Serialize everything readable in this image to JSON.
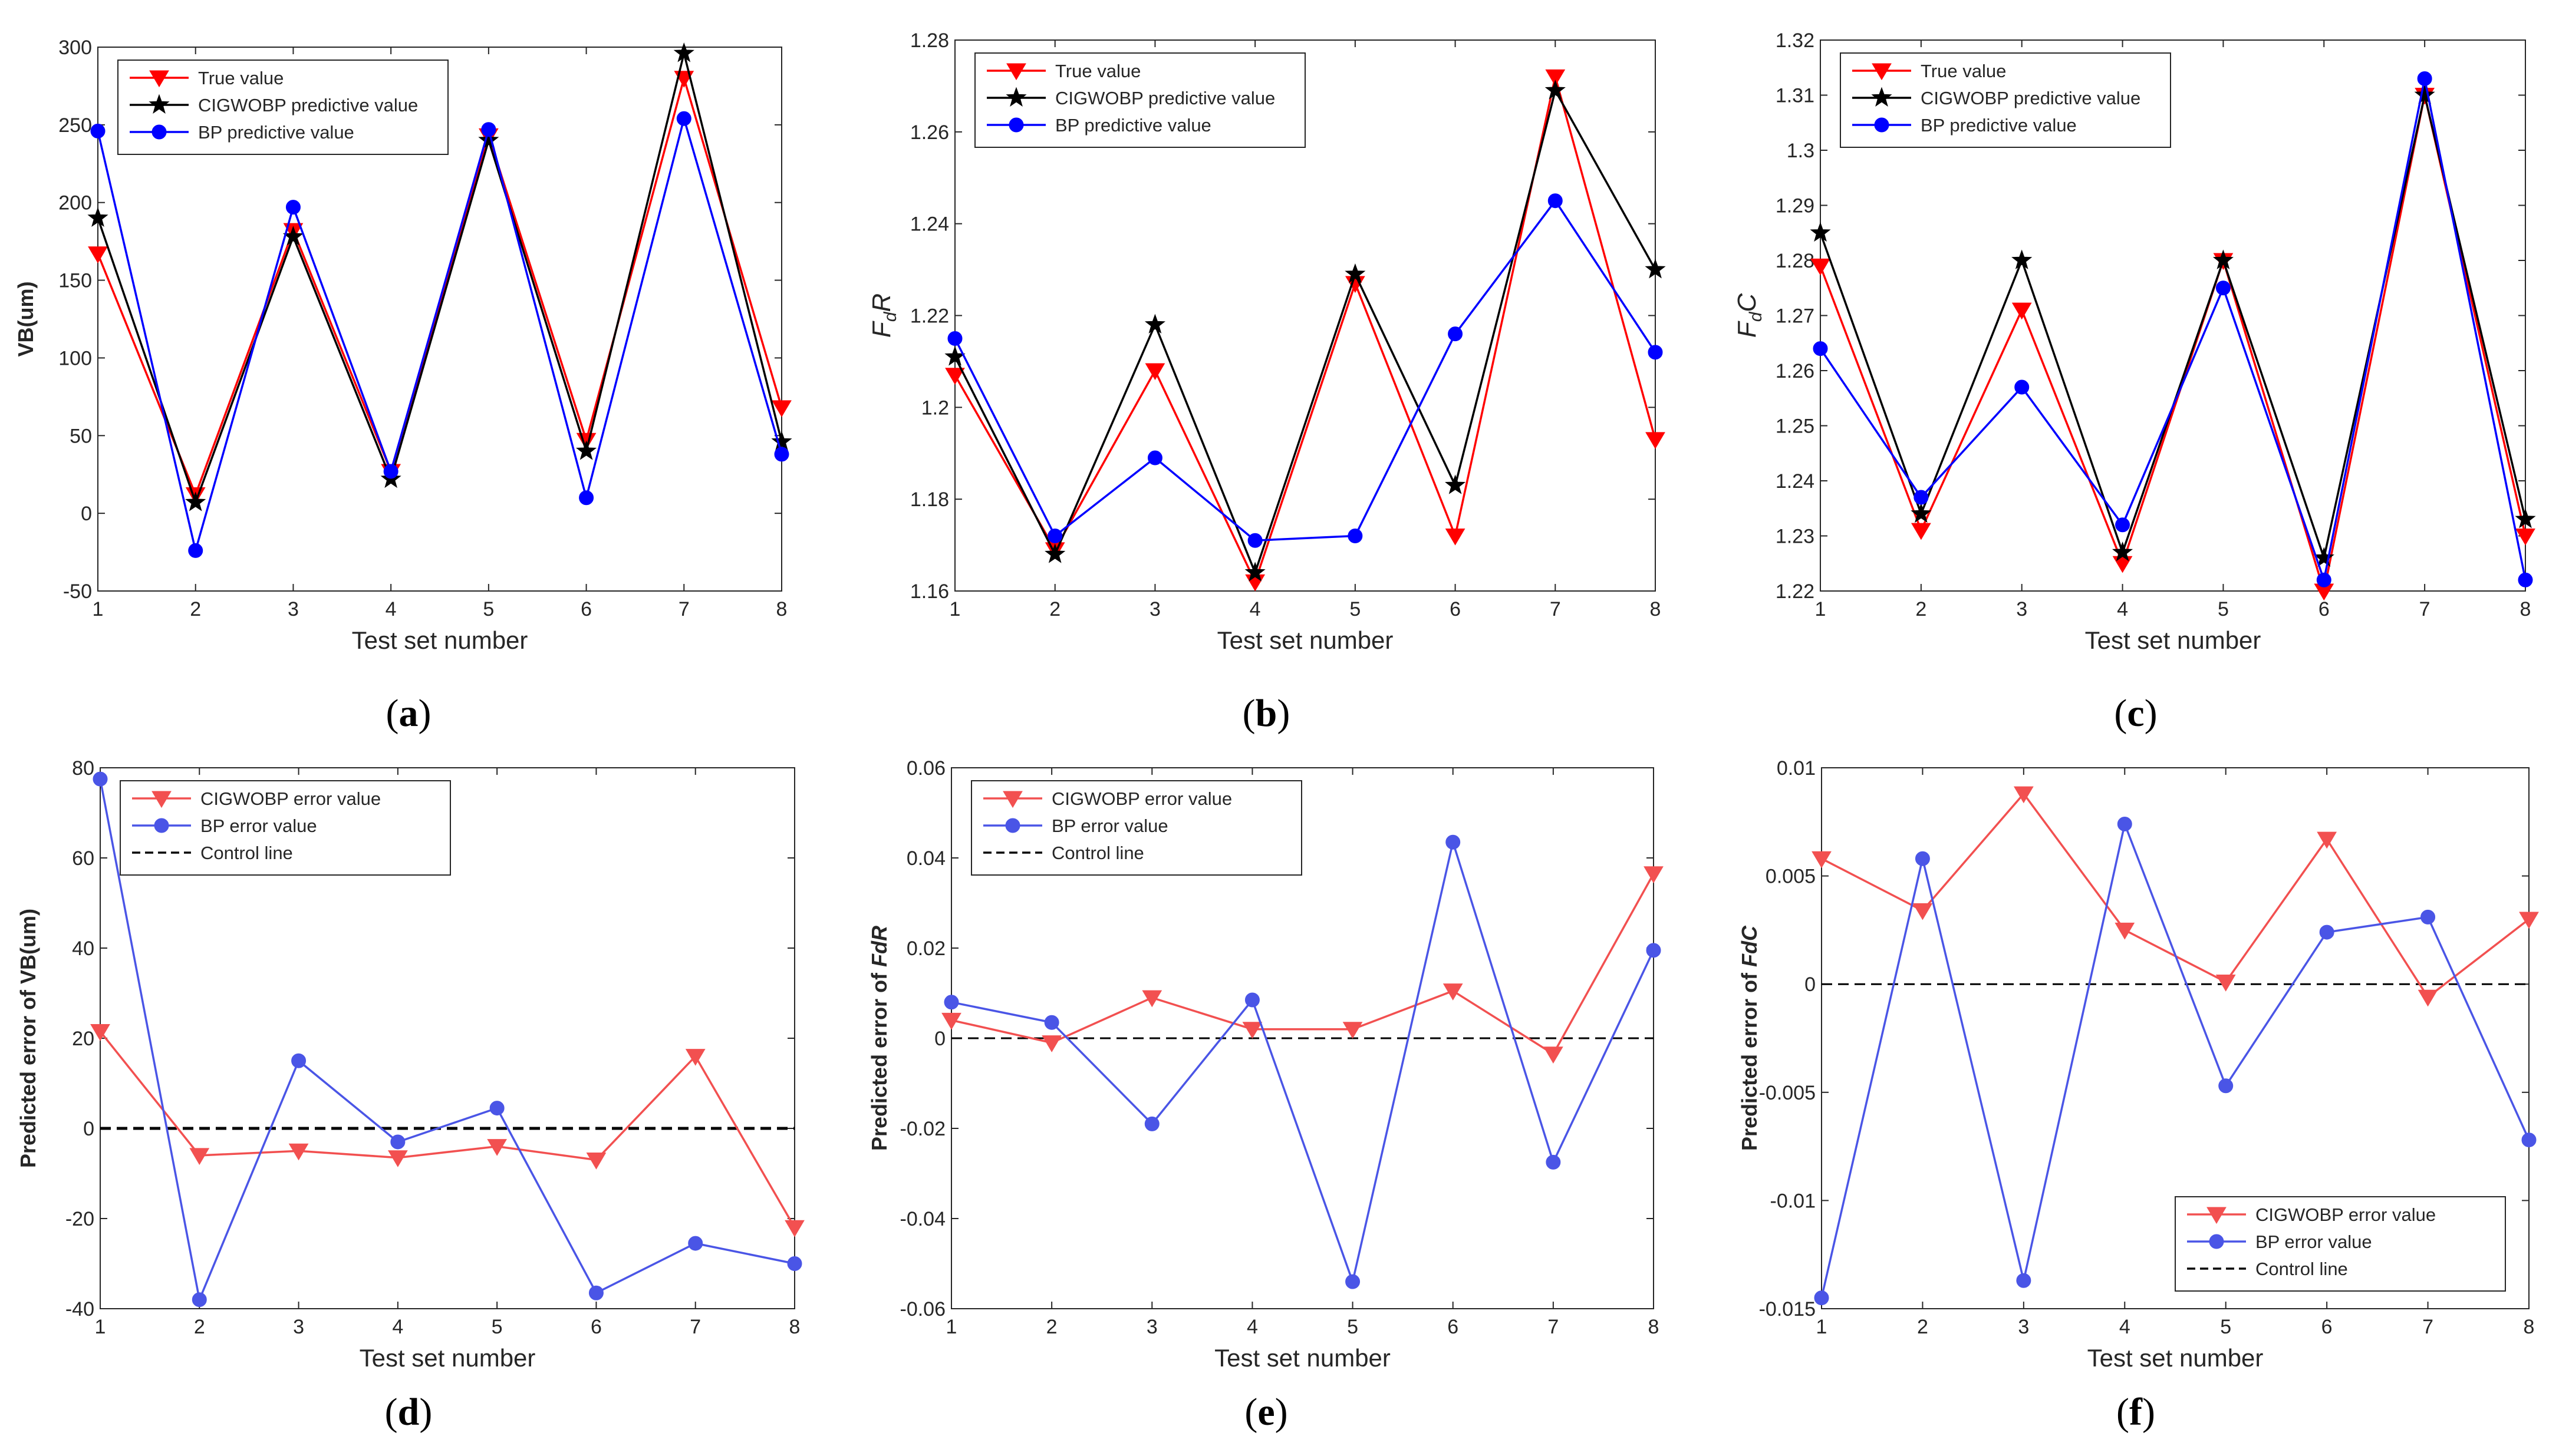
{
  "figure": {
    "panel_labels": [
      "(a)",
      "(b)",
      "(c)",
      "(d)",
      "(e)",
      "(f)"
    ]
  },
  "colors": {
    "red": "#ff0000",
    "black": "#000000",
    "blue": "#0000ff",
    "soft_red": "#f25050",
    "soft_blue": "#4a55e6"
  },
  "chart_data": [
    {
      "id": "a",
      "type": "line",
      "caption": "(a)",
      "xlabel": "Test set number",
      "ylabel": "VB(um)",
      "x": [
        1,
        2,
        3,
        4,
        5,
        6,
        7,
        8
      ],
      "xlim": [
        1,
        8
      ],
      "ylim": [
        -50,
        300
      ],
      "yticks": [
        -50,
        0,
        50,
        100,
        150,
        200,
        250,
        300
      ],
      "ytick_labels": [
        "-50",
        "0",
        "50",
        "100",
        "150",
        "200",
        "250",
        "300"
      ],
      "legend_position": "top-left",
      "series": [
        {
          "name": "True value",
          "color": "#ff0000",
          "marker": "triangle-down",
          "values": [
            167,
            12,
            182,
            27,
            243,
            47,
            280,
            68
          ]
        },
        {
          "name": "CIGWOBP predictive value",
          "color": "#000000",
          "marker": "star",
          "values": [
            190,
            7,
            178,
            22,
            240,
            40,
            296,
            46
          ]
        },
        {
          "name": "BP predictive value",
          "color": "#0000ff",
          "marker": "circle",
          "values": [
            246,
            -24,
            197,
            27,
            247,
            10,
            254,
            38
          ]
        }
      ]
    },
    {
      "id": "b",
      "type": "line",
      "caption": "(b)",
      "xlabel": "Test set number",
      "ylabel": "F",
      "ylabel_sub": "d",
      "ylabel_tail": "R",
      "x": [
        1,
        2,
        3,
        4,
        5,
        6,
        7,
        8
      ],
      "xlim": [
        1,
        8
      ],
      "ylim": [
        1.16,
        1.28
      ],
      "yticks": [
        1.16,
        1.18,
        1.2,
        1.22,
        1.24,
        1.26,
        1.28
      ],
      "ytick_labels": [
        "1.16",
        "1.18",
        "1.2",
        "1.22",
        "1.24",
        "1.26",
        "1.28"
      ],
      "legend_position": "top-left",
      "series": [
        {
          "name": "True value",
          "color": "#ff0000",
          "marker": "triangle-down",
          "values": [
            1.207,
            1.169,
            1.208,
            1.162,
            1.227,
            1.172,
            1.272,
            1.193
          ]
        },
        {
          "name": "CIGWOBP predictive value",
          "color": "#000000",
          "marker": "star",
          "values": [
            1.211,
            1.168,
            1.218,
            1.164,
            1.229,
            1.183,
            1.269,
            1.23
          ]
        },
        {
          "name": "BP predictive value",
          "color": "#0000ff",
          "marker": "circle",
          "values": [
            1.215,
            1.172,
            1.189,
            1.171,
            1.172,
            1.216,
            1.245,
            1.212
          ]
        }
      ]
    },
    {
      "id": "c",
      "type": "line",
      "caption": "(c)",
      "xlabel": "Test set number",
      "ylabel": "F",
      "ylabel_sub": "d",
      "ylabel_tail": "C",
      "x": [
        1,
        2,
        3,
        4,
        5,
        6,
        7,
        8
      ],
      "xlim": [
        1,
        8
      ],
      "ylim": [
        1.22,
        1.32
      ],
      "yticks": [
        1.22,
        1.23,
        1.24,
        1.25,
        1.26,
        1.27,
        1.28,
        1.29,
        1.3,
        1.31,
        1.32
      ],
      "ytick_labels": [
        "1.22",
        "1.23",
        "1.24",
        "1.25",
        "1.26",
        "1.27",
        "1.28",
        "1.29",
        "1.3",
        "1.31",
        "1.32"
      ],
      "legend_position": "top-left",
      "series": [
        {
          "name": "True value",
          "color": "#ff0000",
          "marker": "triangle-down",
          "values": [
            1.279,
            1.231,
            1.271,
            1.225,
            1.28,
            1.22,
            1.31,
            1.23
          ]
        },
        {
          "name": "CIGWOBP predictive value",
          "color": "#000000",
          "marker": "star",
          "values": [
            1.285,
            1.234,
            1.28,
            1.227,
            1.28,
            1.226,
            1.31,
            1.233
          ]
        },
        {
          "name": "BP predictive value",
          "color": "#0000ff",
          "marker": "circle",
          "values": [
            1.264,
            1.237,
            1.257,
            1.232,
            1.275,
            1.222,
            1.313,
            1.222
          ]
        }
      ]
    },
    {
      "id": "d",
      "type": "line",
      "caption": "(d)",
      "xlabel": "Test set number",
      "ylabel": "Predicted error of VB(um)",
      "x": [
        1,
        2,
        3,
        4,
        5,
        6,
        7,
        8
      ],
      "xlim": [
        1,
        8
      ],
      "ylim": [
        -40,
        80
      ],
      "yticks": [
        -40,
        -20,
        0,
        20,
        40,
        60,
        80
      ],
      "ytick_labels": [
        "-40",
        "-20",
        "0",
        "20",
        "40",
        "60",
        "80"
      ],
      "control_line": 0,
      "legend_position": "top-left",
      "series": [
        {
          "name": "CIGWOBP error value",
          "color": "#f25050",
          "marker": "triangle-down",
          "values": [
            21.5,
            -6,
            -5,
            -6.5,
            -4,
            -7,
            16,
            -22
          ]
        },
        {
          "name": "BP error value",
          "color": "#4a55e6",
          "marker": "circle",
          "values": [
            77.5,
            -38,
            15,
            -3,
            4.5,
            -36.5,
            -25.5,
            -30
          ]
        },
        {
          "name": "Control line",
          "color": "#000000",
          "marker": "dashed-line",
          "values": [
            0,
            0,
            0,
            0,
            0,
            0,
            0,
            0
          ]
        }
      ]
    },
    {
      "id": "e",
      "type": "line",
      "caption": "(e)",
      "xlabel": "Test set number",
      "ylabel": "Predicted error of ",
      "ylabel_italic": "FdR",
      "x": [
        1,
        2,
        3,
        4,
        5,
        6,
        7,
        8
      ],
      "xlim": [
        1,
        8
      ],
      "ylim": [
        -0.06,
        0.06
      ],
      "yticks": [
        -0.06,
        -0.04,
        -0.02,
        0,
        0.02,
        0.04,
        0.06
      ],
      "ytick_labels": [
        "-0.06",
        "-0.04",
        "-0.02",
        "0",
        "0.02",
        "0.04",
        "0.06"
      ],
      "control_line": 0,
      "legend_position": "top-left",
      "series": [
        {
          "name": "CIGWOBP error value",
          "color": "#f25050",
          "marker": "triangle-down",
          "values": [
            0.004,
            -0.001,
            0.009,
            0.002,
            0.002,
            0.0105,
            -0.0035,
            0.0365
          ]
        },
        {
          "name": "BP error value",
          "color": "#4a55e6",
          "marker": "circle",
          "values": [
            0.008,
            0.0035,
            -0.019,
            0.0085,
            -0.054,
            0.0435,
            -0.0275,
            0.0195
          ]
        },
        {
          "name": "Control line",
          "color": "#000000",
          "marker": "dashed-line",
          "values": [
            0,
            0,
            0,
            0,
            0,
            0,
            0,
            0
          ]
        }
      ]
    },
    {
      "id": "f",
      "type": "line",
      "caption": "(f)",
      "xlabel": "Test set number",
      "ylabel": "Predicted error of ",
      "ylabel_italic": "FdC",
      "x": [
        1,
        2,
        3,
        4,
        5,
        6,
        7,
        8
      ],
      "xlim": [
        1,
        8
      ],
      "ylim": [
        -0.015,
        0.01
      ],
      "yticks": [
        -0.015,
        -0.01,
        -0.005,
        0,
        0.005,
        0.01
      ],
      "ytick_labels": [
        "-0.015",
        "-0.01",
        "-0.005",
        "0",
        "0.005",
        "0.01"
      ],
      "control_line": 0,
      "legend_position": "bottom-right",
      "series": [
        {
          "name": "CIGWOBP error value",
          "color": "#f25050",
          "marker": "triangle-down",
          "values": [
            0.0058,
            0.0034,
            0.0088,
            0.0025,
            0.0001,
            0.0067,
            -0.0006,
            0.003
          ]
        },
        {
          "name": "BP error value",
          "color": "#4a55e6",
          "marker": "circle",
          "values": [
            -0.0145,
            0.0058,
            -0.0137,
            0.0074,
            -0.0047,
            0.0024,
            0.0031,
            -0.0072
          ]
        },
        {
          "name": "Control line",
          "color": "#000000",
          "marker": "dashed-line",
          "values": [
            0,
            0,
            0,
            0,
            0,
            0,
            0,
            0
          ]
        }
      ]
    }
  ]
}
